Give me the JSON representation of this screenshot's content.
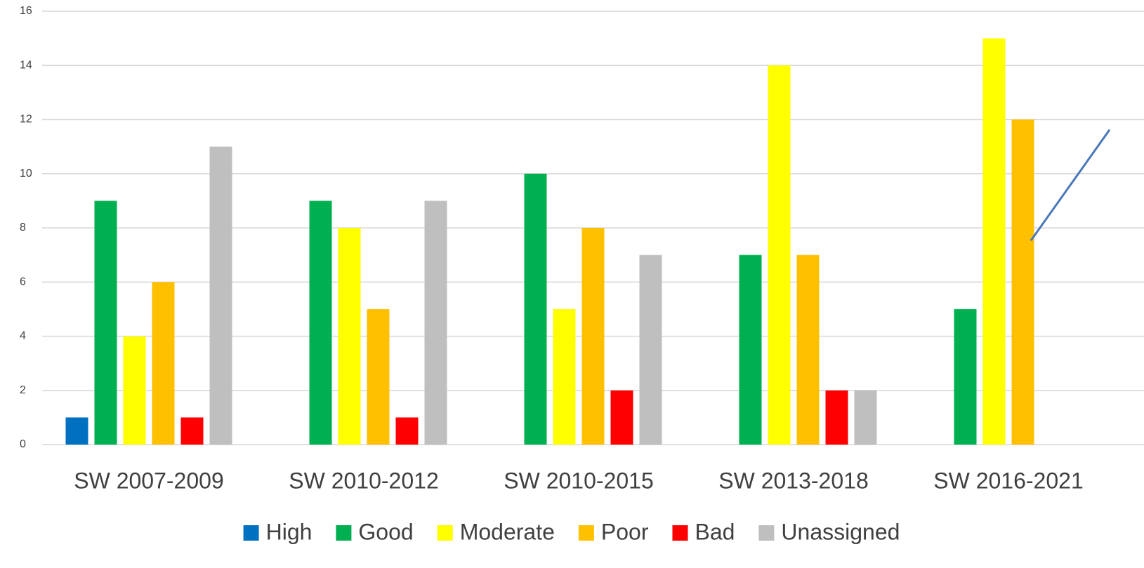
{
  "chart_data": {
    "type": "bar",
    "categories": [
      "SW 2007-2009",
      "SW 2010-2012",
      "SW 2010-2015",
      "SW 2013-2018",
      "SW 2016-2021"
    ],
    "series": [
      {
        "name": "High",
        "color": "#0070C0",
        "values": [
          1,
          0,
          0,
          0,
          0
        ]
      },
      {
        "name": "Good",
        "color": "#00B050",
        "values": [
          9,
          9,
          10,
          7,
          5
        ]
      },
      {
        "name": "Moderate",
        "color": "#FFFF00",
        "values": [
          4,
          8,
          5,
          14,
          15
        ]
      },
      {
        "name": "Poor",
        "color": "#FFC000",
        "values": [
          6,
          5,
          8,
          7,
          12
        ]
      },
      {
        "name": "Bad",
        "color": "#FF0000",
        "values": [
          1,
          1,
          2,
          2,
          0
        ]
      },
      {
        "name": "Unassigned",
        "color": "#BFBFBF",
        "values": [
          11,
          9,
          7,
          2,
          0
        ]
      }
    ],
    "ylim": [
      0,
      16
    ],
    "yticks": [
      0,
      2,
      4,
      6,
      8,
      10,
      12,
      14,
      16
    ],
    "grid": true,
    "legend": "bottom"
  }
}
